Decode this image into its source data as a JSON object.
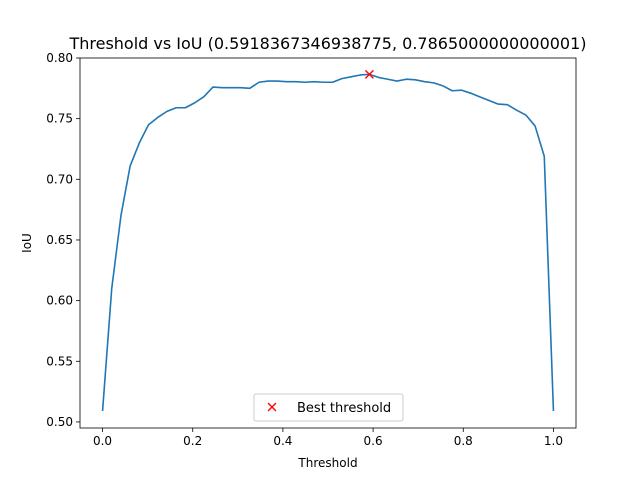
{
  "chart_data": {
    "type": "line",
    "title": "Threshold vs IoU (0.5918367346938775, 0.7865000000000001)",
    "xlabel": "Threshold",
    "ylabel": "IoU",
    "xlim": [
      -0.05,
      1.05
    ],
    "ylim": [
      0.495,
      0.8
    ],
    "x_ticks": [
      "0.0",
      "0.2",
      "0.4",
      "0.6",
      "0.8",
      "1.0"
    ],
    "y_ticks": [
      "0.50",
      "0.55",
      "0.60",
      "0.65",
      "0.70",
      "0.75",
      "0.80"
    ],
    "grid": false,
    "line_color": "#1f77b4",
    "marker_color": "#ff0000",
    "series": [
      {
        "x": [
          0.0,
          0.0204,
          0.0408,
          0.0612,
          0.0816,
          0.102,
          0.1224,
          0.1429,
          0.1633,
          0.1837,
          0.2041,
          0.2245,
          0.2449,
          0.2653,
          0.2857,
          0.3061,
          0.3265,
          0.3469,
          0.3673,
          0.3878,
          0.4082,
          0.4286,
          0.449,
          0.4694,
          0.4898,
          0.5102,
          0.5306,
          0.551,
          0.5714,
          0.5918,
          0.6122,
          0.6327,
          0.6531,
          0.6735,
          0.6939,
          0.7143,
          0.7347,
          0.7551,
          0.7755,
          0.7959,
          0.8163,
          0.8367,
          0.8571,
          0.8776,
          0.898,
          0.9184,
          0.9388,
          0.9592,
          0.9796,
          1.0
        ],
        "values": [
          0.509,
          0.61,
          0.67,
          0.711,
          0.73,
          0.745,
          0.751,
          0.756,
          0.759,
          0.759,
          0.763,
          0.768,
          0.776,
          0.7755,
          0.7755,
          0.7755,
          0.775,
          0.78,
          0.781,
          0.781,
          0.7805,
          0.7805,
          0.78,
          0.7805,
          0.78,
          0.78,
          0.783,
          0.7845,
          0.786,
          0.7865,
          0.784,
          0.7825,
          0.781,
          0.7825,
          0.782,
          0.7805,
          0.7795,
          0.777,
          0.773,
          0.7735,
          0.771,
          0.768,
          0.765,
          0.762,
          0.7615,
          0.757,
          0.753,
          0.744,
          0.719,
          0.509
        ]
      }
    ],
    "best_point": {
      "x": 0.5918367346938775,
      "y": 0.7865000000000001
    },
    "legend": {
      "label": "Best threshold",
      "placement": "lower center"
    }
  }
}
